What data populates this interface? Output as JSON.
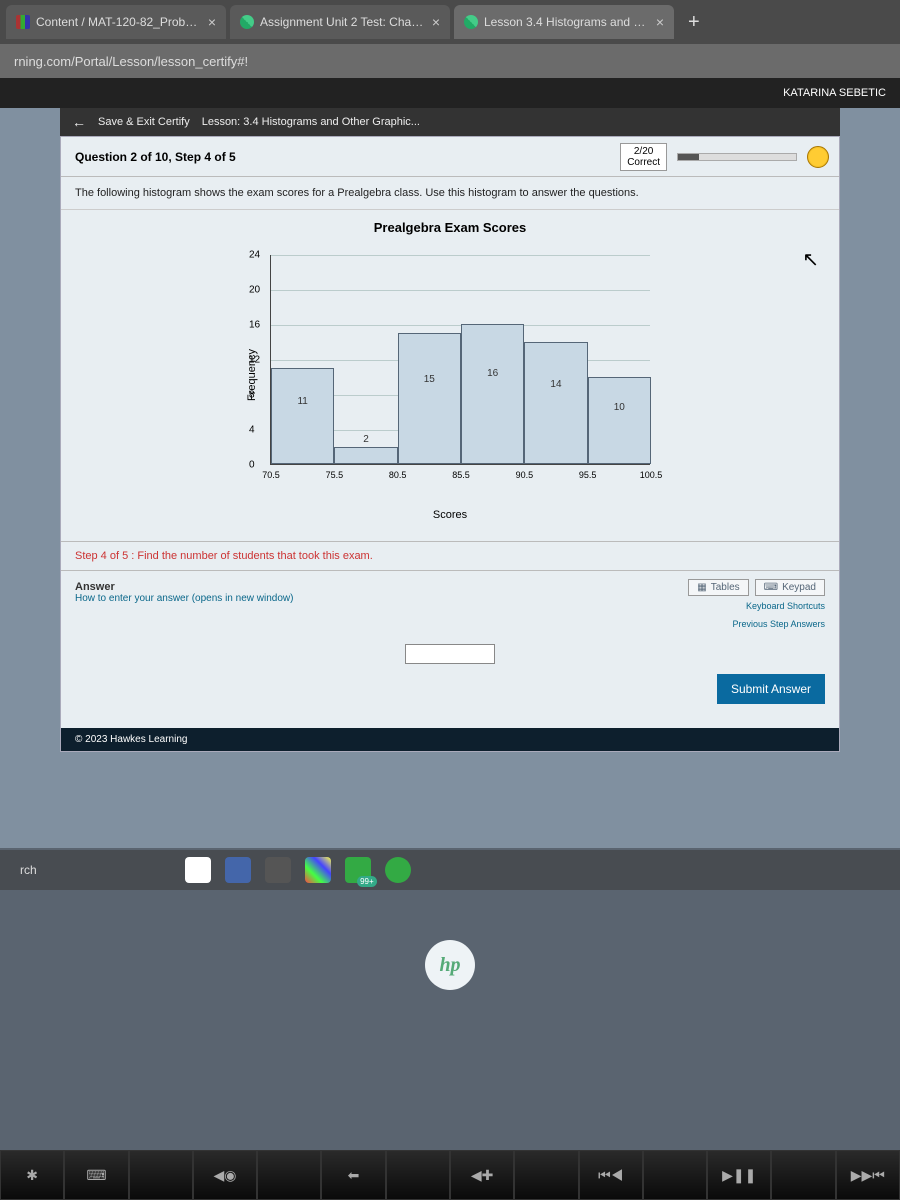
{
  "browser": {
    "tabs": [
      {
        "title": "Content / MAT-120-82_Probabil"
      },
      {
        "title": "Assignment Unit 2 Test: Chapter"
      },
      {
        "title": "Lesson 3.4 Histograms and Othe"
      }
    ],
    "url": "rning.com/Portal/Lesson/lesson_certify#!"
  },
  "header": {
    "user": "KATARINA SEBETIC",
    "save_exit": "Save & Exit Certify",
    "lesson": "Lesson: 3.4 Histograms and Other Graphic..."
  },
  "question": {
    "label": "Question 2 of 10, Step 4 of 5",
    "correct_top": "2/20",
    "correct_bottom": "Correct",
    "prompt": "The following histogram shows the exam scores for a Prealgebra class. Use this histogram to answer the questions.",
    "step": "Step 4 of 5 :  Find the number of students that took this exam."
  },
  "chart": {
    "type": "histogram",
    "title": "Prealgebra Exam Scores",
    "ylabel": "Frequency",
    "xlabel": "Scores",
    "ylim": [
      0,
      24
    ],
    "ytick_step": 4,
    "yticks": [
      0,
      4,
      8,
      12,
      16,
      20,
      24
    ],
    "x_breaks": [
      70.5,
      75.5,
      80.5,
      85.5,
      90.5,
      95.5,
      100.5
    ],
    "values": [
      11,
      2,
      15,
      16,
      14,
      10
    ],
    "bar_value_labels": [
      "11",
      "2",
      "15",
      "16",
      "14",
      "10"
    ],
    "bar_fill": "#c8d8e4",
    "bar_border": "#556677",
    "grid_color": "#bbccccc",
    "background_color": "#e8eef2",
    "label_fontsize": 11,
    "tick_fontsize": 10
  },
  "answer": {
    "label": "Answer",
    "hint": "How to enter your answer (opens in new window)",
    "tables": "Tables",
    "keypad": "Keypad",
    "kbd": "Keyboard Shortcuts",
    "prev": "Previous Step Answers",
    "submit": "Submit Answer"
  },
  "footer": {
    "copyright": "© 2023 Hawkes Learning"
  },
  "taskbar": {
    "search": "rch",
    "badge": "99+"
  },
  "fnkeys": [
    "✱",
    "⌨",
    "",
    "⏮◉",
    "",
    "⬅",
    "",
    "◀✚",
    "",
    "⏮◀",
    "",
    "▶❚❚",
    "",
    "▶▶⏮"
  ]
}
